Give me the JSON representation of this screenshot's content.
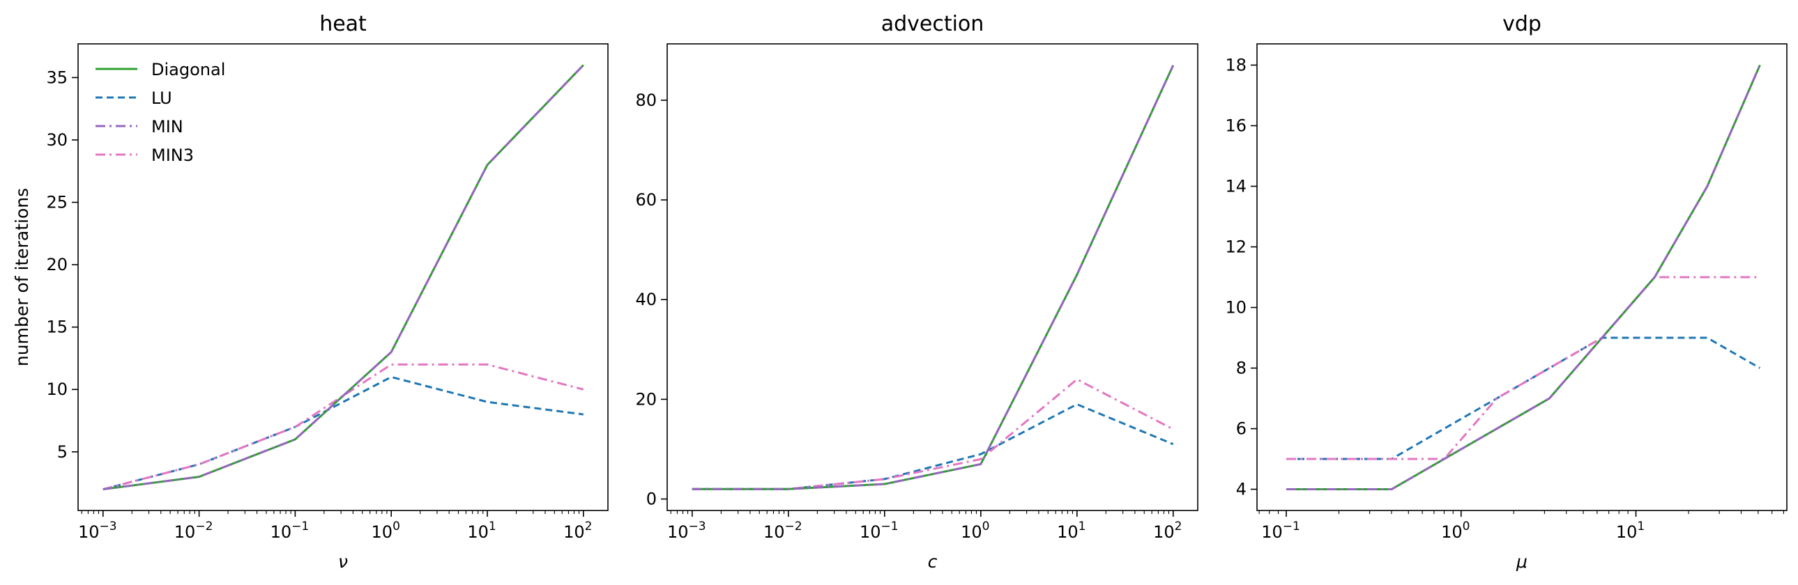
{
  "colors": {
    "Diagonal": "#2ca02c",
    "LU": "#1f77b4",
    "MIN": "#9467bd",
    "MIN3": "#e377c2"
  },
  "dashes": {
    "Diagonal": "",
    "LU": "10,6",
    "MIN": "14,6,3,6",
    "MIN3": "14,6,3,6"
  },
  "legend": {
    "entries": [
      "Diagonal",
      "LU",
      "MIN",
      "MIN3"
    ],
    "placement": "upper-left",
    "panel": 0
  },
  "chart_data": [
    {
      "type": "line",
      "title": "heat",
      "xlabel": "ν",
      "ylabel": "number of iterations",
      "xscale": "log",
      "xlim": [
        0.00055,
        180
      ],
      "ylim": [
        0.3,
        37.7
      ],
      "xticks": [
        0.001,
        0.01,
        0.1,
        1,
        10,
        100
      ],
      "xtick_labels": [
        [
          "10",
          "−3"
        ],
        [
          "10",
          "−2"
        ],
        [
          "10",
          "−1"
        ],
        [
          "10",
          "0"
        ],
        [
          "10",
          "1"
        ],
        [
          "10",
          "2"
        ]
      ],
      "yticks": [
        5,
        10,
        15,
        20,
        25,
        30,
        35
      ],
      "ytick_labels": [
        "5",
        "10",
        "15",
        "20",
        "25",
        "30",
        "35"
      ],
      "grid": false,
      "series": [
        {
          "name": "LU",
          "x": [
            0.001,
            0.01,
            0.1,
            1,
            10,
            100
          ],
          "y": [
            2,
            4,
            7,
            11,
            9,
            8
          ]
        },
        {
          "name": "MIN3",
          "x": [
            0.001,
            0.01,
            0.1,
            1,
            10,
            100
          ],
          "y": [
            2,
            4,
            7,
            12,
            12,
            10
          ]
        },
        {
          "name": "Diagonal",
          "x": [
            0.001,
            0.01,
            0.1,
            1,
            10,
            100
          ],
          "y": [
            2,
            3,
            6,
            13,
            28,
            36
          ]
        },
        {
          "name": "MIN",
          "x": [
            0.001,
            0.01,
            0.1,
            1,
            10,
            100
          ],
          "y": [
            2,
            3,
            6,
            13,
            28,
            36
          ]
        }
      ]
    },
    {
      "type": "line",
      "title": "advection",
      "xlabel": "c",
      "ylabel": "",
      "xscale": "log",
      "xlim": [
        0.00055,
        180
      ],
      "ylim": [
        -2.3,
        91.3
      ],
      "xticks": [
        0.001,
        0.01,
        0.1,
        1,
        10,
        100
      ],
      "xtick_labels": [
        [
          "10",
          "−3"
        ],
        [
          "10",
          "−2"
        ],
        [
          "10",
          "−1"
        ],
        [
          "10",
          "0"
        ],
        [
          "10",
          "1"
        ],
        [
          "10",
          "2"
        ]
      ],
      "yticks": [
        0,
        20,
        40,
        60,
        80
      ],
      "ytick_labels": [
        "0",
        "20",
        "40",
        "60",
        "80"
      ],
      "grid": false,
      "series": [
        {
          "name": "LU",
          "x": [
            0.001,
            0.01,
            0.1,
            1,
            10,
            100
          ],
          "y": [
            2,
            2,
            4,
            9,
            19,
            11
          ]
        },
        {
          "name": "MIN3",
          "x": [
            0.001,
            0.01,
            0.1,
            1,
            10,
            100
          ],
          "y": [
            2,
            2,
            4,
            8,
            24,
            14
          ]
        },
        {
          "name": "Diagonal",
          "x": [
            0.001,
            0.01,
            0.1,
            1,
            10,
            100
          ],
          "y": [
            2,
            2,
            3,
            7,
            45,
            87
          ]
        },
        {
          "name": "MIN",
          "x": [
            0.001,
            0.01,
            0.1,
            1,
            10,
            100
          ],
          "y": [
            2,
            2,
            3,
            7,
            45,
            87
          ]
        }
      ]
    },
    {
      "type": "line",
      "title": "vdp",
      "xlabel": "μ",
      "ylabel": "",
      "xscale": "log",
      "xlim": [
        0.068,
        73
      ],
      "ylim": [
        3.3,
        18.7
      ],
      "xticks": [
        0.1,
        1,
        10
      ],
      "xtick_labels": [
        [
          "10",
          "−1"
        ],
        [
          "10",
          "0"
        ],
        [
          "10",
          "1"
        ]
      ],
      "yticks": [
        4,
        6,
        8,
        10,
        12,
        14,
        16,
        18
      ],
      "ytick_labels": [
        "4",
        "6",
        "8",
        "10",
        "12",
        "14",
        "16",
        "18"
      ],
      "grid": false,
      "series": [
        {
          "name": "LU",
          "x": [
            0.1,
            0.4,
            1.6,
            3.2,
            6.4,
            12.8,
            25.6,
            51.2
          ],
          "y": [
            5,
            5,
            7,
            8,
            9,
            9,
            9,
            8
          ]
        },
        {
          "name": "MIN3",
          "x": [
            0.1,
            0.4,
            0.8,
            1.6,
            3.2,
            6.4,
            12.8,
            25.6,
            51.2
          ],
          "y": [
            5,
            5,
            5,
            7,
            8,
            9,
            11,
            11,
            11
          ]
        },
        {
          "name": "Diagonal",
          "x": [
            0.1,
            0.4,
            3.2,
            6.4,
            12.8,
            25.6,
            51.2
          ],
          "y": [
            4,
            4,
            7,
            9,
            11,
            14,
            18
          ]
        },
        {
          "name": "MIN",
          "x": [
            0.1,
            0.4,
            3.2,
            6.4,
            12.8,
            25.6,
            51.2
          ],
          "y": [
            4,
            4,
            7,
            9,
            11,
            14,
            18
          ]
        }
      ]
    }
  ]
}
